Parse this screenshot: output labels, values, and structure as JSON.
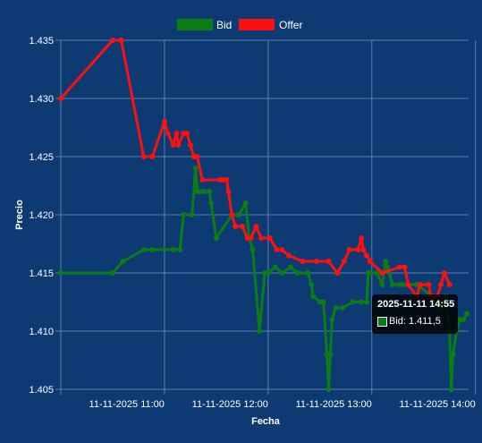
{
  "chart_data": {
    "type": "line",
    "xlabel": "Fecha",
    "ylabel": "Precio",
    "ylim": [
      1.405,
      1.435
    ],
    "yticks": [
      "1.405",
      "1.410",
      "1.415",
      "1.420",
      "1.425",
      "1.430",
      "1.435"
    ],
    "xticks": [
      {
        "t": 660,
        "label": "11-11-2025 11:00"
      },
      {
        "t": 720,
        "label": "11-11-2025 12:00"
      },
      {
        "t": 780,
        "label": "11-11-2025 13:00"
      },
      {
        "t": 840,
        "label": "11-11-2025 14:00"
      }
    ],
    "legend_position": "top-center",
    "grid": true,
    "series": [
      {
        "name": "Bid",
        "color": "#0a7d14",
        "points": [
          [
            600,
            1.415
          ],
          [
            630,
            1.415
          ],
          [
            636,
            1.416
          ],
          [
            648,
            1.417
          ],
          [
            653,
            1.417
          ],
          [
            665,
            1.417
          ],
          [
            669,
            1.417
          ],
          [
            671,
            1.42
          ],
          [
            676,
            1.42
          ],
          [
            678,
            1.424
          ],
          [
            679,
            1.422
          ],
          [
            681,
            1.422
          ],
          [
            683,
            1.422
          ],
          [
            686,
            1.422
          ],
          [
            687,
            1.421
          ],
          [
            690,
            1.418
          ],
          [
            699,
            1.42
          ],
          [
            703,
            1.42
          ],
          [
            707,
            1.421
          ],
          [
            709,
            1.418
          ],
          [
            711,
            1.417
          ],
          [
            715,
            1.41
          ],
          [
            718,
            1.415
          ],
          [
            720,
            1.415
          ],
          [
            724,
            1.4155
          ],
          [
            728,
            1.415
          ],
          [
            733,
            1.4155
          ],
          [
            737,
            1.415
          ],
          [
            743,
            1.415
          ],
          [
            745,
            1.414
          ],
          [
            746,
            1.413
          ],
          [
            750,
            1.4125
          ],
          [
            752,
            1.4125
          ],
          [
            754,
            1.408
          ],
          [
            755,
            1.405
          ],
          [
            756,
            1.408
          ],
          [
            757,
            1.411
          ],
          [
            759,
            1.412
          ],
          [
            763,
            1.412
          ],
          [
            769,
            1.4125
          ],
          [
            774,
            1.4125
          ],
          [
            777,
            1.4125
          ],
          [
            778,
            1.415
          ],
          [
            779,
            1.415
          ],
          [
            783,
            1.415
          ],
          [
            786,
            1.414
          ],
          [
            788,
            1.416
          ],
          [
            789,
            1.4155
          ],
          [
            792,
            1.414
          ],
          [
            796,
            1.414
          ],
          [
            798,
            1.414
          ],
          [
            806,
            1.414
          ],
          [
            815,
            1.413
          ],
          [
            819,
            1.412
          ],
          [
            820,
            1.412
          ],
          [
            823,
            1.413
          ],
          [
            825,
            1.41
          ],
          [
            826,
            1.405
          ],
          [
            827,
            1.408
          ],
          [
            829,
            1.41
          ],
          [
            831,
            1.411
          ],
          [
            833,
            1.411
          ],
          [
            835,
            1.4115
          ]
        ]
      },
      {
        "name": "Offer",
        "color": "#ff1010",
        "points": [
          [
            600,
            1.43
          ],
          [
            630,
            1.435
          ],
          [
            635,
            1.435
          ],
          [
            648,
            1.425
          ],
          [
            653,
            1.425
          ],
          [
            660,
            1.428
          ],
          [
            662,
            1.427
          ],
          [
            665,
            1.426
          ],
          [
            667,
            1.427
          ],
          [
            668,
            1.426
          ],
          [
            671,
            1.427
          ],
          [
            673,
            1.427
          ],
          [
            675,
            1.426
          ],
          [
            677,
            1.425
          ],
          [
            679,
            1.425
          ],
          [
            682,
            1.423
          ],
          [
            692,
            1.423
          ],
          [
            694,
            1.423
          ],
          [
            696,
            1.423
          ],
          [
            697,
            1.422
          ],
          [
            699,
            1.42
          ],
          [
            701,
            1.419
          ],
          [
            705,
            1.419
          ],
          [
            708,
            1.418
          ],
          [
            710,
            1.418
          ],
          [
            713,
            1.419
          ],
          [
            716,
            1.418
          ],
          [
            721,
            1.418
          ],
          [
            725,
            1.417
          ],
          [
            728,
            1.417
          ],
          [
            732,
            1.4165
          ],
          [
            740,
            1.416
          ],
          [
            748,
            1.416
          ],
          [
            755,
            1.416
          ],
          [
            760,
            1.415
          ],
          [
            764,
            1.416
          ],
          [
            767,
            1.417
          ],
          [
            772,
            1.417
          ],
          [
            774,
            1.418
          ],
          [
            775,
            1.417
          ],
          [
            777,
            1.4165
          ],
          [
            779,
            1.416
          ],
          [
            786,
            1.415
          ],
          [
            796,
            1.4155
          ],
          [
            799,
            1.4155
          ],
          [
            801,
            1.414
          ],
          [
            806,
            1.413
          ],
          [
            808,
            1.414
          ],
          [
            813,
            1.414
          ],
          [
            814,
            1.413
          ],
          [
            818,
            1.413
          ],
          [
            820,
            1.414
          ],
          [
            822,
            1.415
          ],
          [
            825,
            1.414
          ]
        ]
      }
    ],
    "tooltip": {
      "title": "2025-11-11 14:55",
      "label": "Bid: 1.411,5"
    }
  },
  "colors": {
    "background": "#0d3a73",
    "grid": "#5f7fa8",
    "text": "#ffffff"
  }
}
